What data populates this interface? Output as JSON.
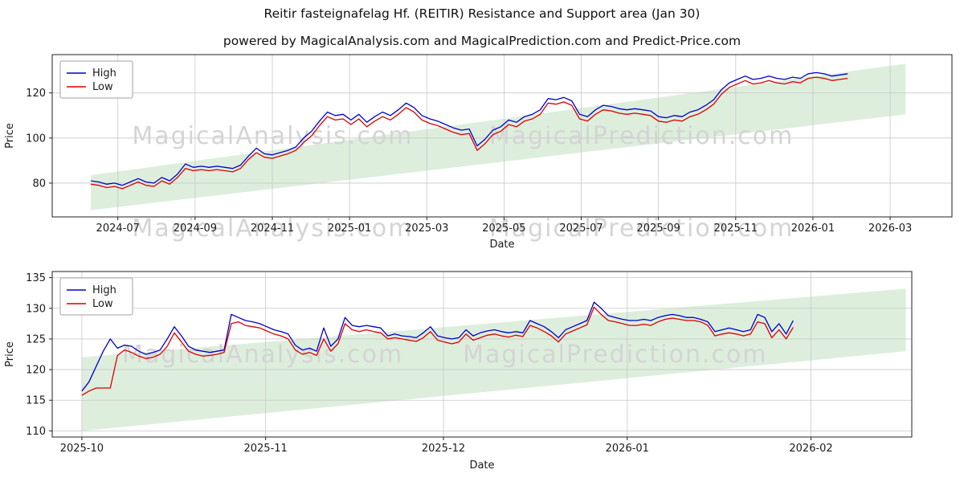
{
  "title": "Reitir fasteignafelag Hf. (REITIR) Resistance and Support area (Jan 30)",
  "subtitle": "powered by MagicalAnalysis.com and MagicalPrediction.com and Predict-Price.com",
  "watermarks": [
    "MagicalAnalysis.com",
    "MagicalPrediction.com"
  ],
  "colors": {
    "high": "#0000cd",
    "low": "#dd0000",
    "band": "#ddeedd",
    "grid": "#c8c8c8",
    "watermark": "#d4d4d4",
    "spine": "#222222",
    "text": "#1a1a1a"
  },
  "chart_data": [
    {
      "type": "line",
      "xlabel": "Date",
      "ylabel": "Price",
      "xlim": [
        -0.7,
        22.6
      ],
      "ylim": [
        65,
        137
      ],
      "grid": true,
      "legend_position": "upper-left",
      "xticks": {
        "positions": [
          1,
          3,
          5,
          7,
          9,
          11,
          13,
          15,
          17,
          19,
          21
        ],
        "labels": [
          "2024-07",
          "2024-09",
          "2024-11",
          "2025-01",
          "2025-03",
          "2025-05",
          "2025-07",
          "2025-09",
          "2025-11",
          "2026-01",
          "2026-03"
        ]
      },
      "yticks": [
        80,
        100,
        120
      ],
      "band": {
        "x": [
          0.3,
          21.4
        ],
        "lower": [
          68,
          110.5
        ],
        "upper": [
          83.5,
          133
        ]
      },
      "series": [
        {
          "name": "High",
          "color_key": "high",
          "x_start": 0.3,
          "x_end": 19.9,
          "values": [
            81,
            80.5,
            79.5,
            80,
            79,
            80.5,
            82,
            80.5,
            80,
            82.5,
            81,
            84,
            88.5,
            87,
            87.5,
            87,
            87.5,
            87,
            86.5,
            88,
            92,
            95.5,
            93,
            92.5,
            93.5,
            94.5,
            96,
            100,
            103,
            107.5,
            111.5,
            110,
            110.5,
            108,
            110.5,
            107,
            109.5,
            111.5,
            110,
            112.5,
            115.5,
            113.5,
            110,
            108.5,
            107.5,
            106,
            104.5,
            103.5,
            104,
            96.5,
            99.5,
            103.5,
            105,
            108,
            107,
            109.5,
            110.5,
            112.5,
            117.5,
            117,
            118,
            116.5,
            110.5,
            109.5,
            112.5,
            114.5,
            114,
            113,
            112.5,
            113,
            112.5,
            112,
            109.5,
            109,
            110,
            109.5,
            111.5,
            112.5,
            114.5,
            117,
            121.5,
            124.5,
            126,
            127.5,
            126,
            126.5,
            127.5,
            126.5,
            126,
            127,
            126.5,
            128.5,
            129,
            128.5,
            127.5,
            128,
            128.5
          ]
        },
        {
          "name": "Low",
          "color_key": "low",
          "x_start": 0.3,
          "x_end": 19.9,
          "values": [
            79.5,
            79,
            78,
            78.5,
            77.5,
            79,
            80.5,
            79,
            78.5,
            81,
            79.5,
            82.5,
            86.5,
            85.5,
            86,
            85.5,
            86,
            85.5,
            85,
            86.5,
            90.5,
            93.5,
            91.5,
            91,
            92,
            93,
            94.5,
            98,
            101,
            105.5,
            109.5,
            108,
            108.5,
            106,
            108.5,
            105,
            107.5,
            109.5,
            108,
            110.5,
            113.5,
            111.5,
            108,
            106.5,
            105.5,
            104,
            102.5,
            101.5,
            102,
            94.5,
            97.5,
            101.5,
            103,
            106,
            105,
            107.5,
            108.5,
            110.5,
            115.5,
            115,
            116,
            114.5,
            108.5,
            107.5,
            110.5,
            112.5,
            112,
            111,
            110.5,
            111,
            110.5,
            110,
            107.5,
            107,
            108,
            107.5,
            109.5,
            110.5,
            112.5,
            115,
            119.5,
            122.5,
            124,
            125.5,
            124,
            124.5,
            125.5,
            124.5,
            124,
            125,
            124.5,
            126.5,
            127,
            126.5,
            125.5,
            126,
            126.5
          ]
        }
      ]
    },
    {
      "type": "line",
      "xlabel": "Date",
      "ylabel": "Price",
      "xlim": [
        -5,
        140
      ],
      "ylim": [
        109,
        136
      ],
      "grid": true,
      "legend_position": "upper-left",
      "xticks": {
        "positions": [
          0,
          31,
          61,
          92,
          123
        ],
        "labels": [
          "2025-10",
          "2025-11",
          "2025-12",
          "2026-01",
          "2026-02"
        ]
      },
      "yticks": [
        110,
        115,
        120,
        125,
        130,
        135
      ],
      "band": {
        "x": [
          0,
          139
        ],
        "lower": [
          110,
          123
        ],
        "upper": [
          122,
          133.2
        ]
      },
      "series": [
        {
          "name": "High",
          "color_key": "high",
          "x_start": 0,
          "x_end": 120,
          "values": [
            116.5,
            118,
            120.5,
            123,
            125,
            123.5,
            124,
            123.8,
            123,
            122.5,
            122.8,
            123.2,
            125,
            127,
            125.5,
            123.8,
            123.2,
            123,
            122.8,
            123,
            123.2,
            129,
            128.5,
            128,
            127.8,
            127.5,
            127,
            126.5,
            126.2,
            125.8,
            124,
            123.2,
            123.5,
            123,
            126.8,
            123.8,
            125,
            128.5,
            127.2,
            127,
            127.2,
            127,
            126.8,
            125.5,
            125.8,
            125.5,
            125.4,
            125.2,
            126,
            127,
            125.5,
            125.2,
            125,
            125.2,
            126.5,
            125.5,
            126,
            126.3,
            126.5,
            126.2,
            126,
            126.2,
            126,
            128,
            127.5,
            127,
            126.2,
            125.2,
            126.5,
            127,
            127.5,
            128,
            131,
            130,
            128.8,
            128.5,
            128.2,
            128,
            128,
            128.2,
            128,
            128.5,
            128.8,
            129,
            128.8,
            128.5,
            128.5,
            128.2,
            127.8,
            126.2,
            126.5,
            126.8,
            126.5,
            126.2,
            126.5,
            129,
            128.5,
            126.2,
            127.5,
            125.8,
            128
          ]
        },
        {
          "name": "Low",
          "color_key": "low",
          "x_start": 0,
          "x_end": 120,
          "values": [
            115.8,
            116.5,
            117,
            117,
            117,
            122.3,
            123.2,
            122.8,
            122.2,
            121.8,
            122,
            122.5,
            123.8,
            126,
            124.5,
            123,
            122.5,
            122.2,
            122.3,
            122.5,
            122.8,
            127.5,
            127.8,
            127.2,
            127,
            126.8,
            126.3,
            125.8,
            125.5,
            125,
            123.2,
            122.5,
            122.8,
            122.3,
            125,
            123,
            124.2,
            127.5,
            126.5,
            126.2,
            126.5,
            126.2,
            126,
            125,
            125.2,
            125,
            124.8,
            124.6,
            125.2,
            126.2,
            124.8,
            124.5,
            124.2,
            124.5,
            125.8,
            124.8,
            125.2,
            125.6,
            125.8,
            125.5,
            125.3,
            125.6,
            125.4,
            127.2,
            126.8,
            126.2,
            125.5,
            124.5,
            125.8,
            126.3,
            126.8,
            127.3,
            130.2,
            129,
            128,
            127.8,
            127.5,
            127.2,
            127.2,
            127.4,
            127.2,
            127.8,
            128.2,
            128.4,
            128.2,
            128,
            128,
            127.8,
            127.2,
            125.5,
            125.8,
            126,
            125.8,
            125.5,
            125.8,
            127.8,
            127.5,
            125.2,
            126.5,
            125,
            126.9
          ]
        }
      ]
    }
  ]
}
